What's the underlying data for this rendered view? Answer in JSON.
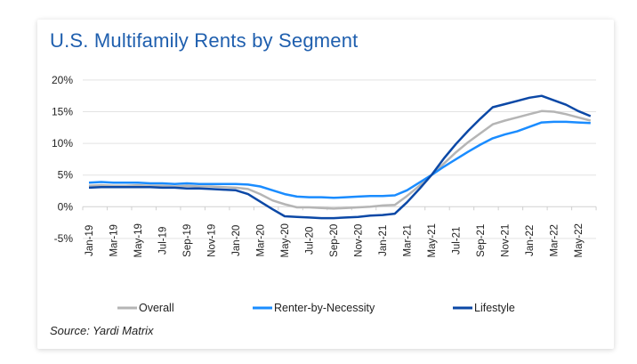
{
  "chart_data": {
    "type": "line",
    "title": "U.S. Multifamily Rents by Segment",
    "source": "Source: Yardi Matrix",
    "xlabel": "",
    "ylabel": "",
    "ylim": [
      -5,
      20
    ],
    "yticks": [
      -5,
      0,
      5,
      10,
      15,
      20
    ],
    "ytick_labels": [
      "-5%",
      "0%",
      "5%",
      "10%",
      "15%",
      "20%"
    ],
    "grid": true,
    "legend_position": "bottom",
    "x": [
      "Jan-19",
      "Feb-19",
      "Mar-19",
      "Apr-19",
      "May-19",
      "Jun-19",
      "Jul-19",
      "Aug-19",
      "Sep-19",
      "Oct-19",
      "Nov-19",
      "Dec-19",
      "Jan-20",
      "Feb-20",
      "Mar-20",
      "Apr-20",
      "May-20",
      "Jun-20",
      "Jul-20",
      "Aug-20",
      "Sep-20",
      "Oct-20",
      "Nov-20",
      "Dec-20",
      "Jan-21",
      "Feb-21",
      "Mar-21",
      "Apr-21",
      "May-21",
      "Jun-21",
      "Jul-21",
      "Aug-21",
      "Sep-21",
      "Oct-21",
      "Nov-21",
      "Dec-21",
      "Jan-22",
      "Feb-22",
      "Mar-22",
      "Apr-22",
      "May-22",
      "Jun-22"
    ],
    "xtick_labels": [
      "Jan-19",
      "Mar-19",
      "May-19",
      "Jul-19",
      "Sep-19",
      "Nov-19",
      "Jan-20",
      "Mar-20",
      "May-20",
      "Jul-20",
      "Sep-20",
      "Nov-20",
      "Jan-21",
      "Mar-21",
      "May-21",
      "Jul-21",
      "Sep-21",
      "Nov-21",
      "Jan-22",
      "Mar-22",
      "May-22"
    ],
    "series": [
      {
        "name": "Overall",
        "color": "#b5b5b5",
        "values": [
          3.3,
          3.4,
          3.3,
          3.3,
          3.4,
          3.3,
          3.3,
          3.2,
          3.3,
          3.2,
          3.2,
          3.1,
          3.0,
          2.8,
          2.0,
          1.0,
          0.4,
          -0.1,
          -0.1,
          -0.2,
          -0.3,
          -0.2,
          -0.1,
          0.0,
          0.2,
          0.3,
          1.7,
          3.3,
          5.0,
          6.8,
          8.6,
          10.2,
          11.6,
          13.0,
          13.6,
          14.1,
          14.6,
          15.1,
          15.0,
          14.6,
          14.1,
          13.6
        ]
      },
      {
        "name": "Renter-by-Necessity",
        "color": "#1a8cff",
        "values": [
          3.8,
          3.9,
          3.8,
          3.8,
          3.8,
          3.7,
          3.7,
          3.6,
          3.7,
          3.6,
          3.6,
          3.6,
          3.6,
          3.5,
          3.2,
          2.6,
          2.0,
          1.6,
          1.5,
          1.5,
          1.4,
          1.5,
          1.6,
          1.7,
          1.7,
          1.8,
          2.6,
          3.8,
          5.0,
          6.3,
          7.5,
          8.7,
          9.8,
          10.8,
          11.4,
          11.9,
          12.6,
          13.3,
          13.4,
          13.4,
          13.3,
          13.2
        ]
      },
      {
        "name": "Lifestyle",
        "color": "#0b48a6",
        "values": [
          3.0,
          3.1,
          3.1,
          3.1,
          3.1,
          3.1,
          3.0,
          3.0,
          2.9,
          2.9,
          2.8,
          2.7,
          2.6,
          2.0,
          0.8,
          -0.4,
          -1.5,
          -1.6,
          -1.7,
          -1.8,
          -1.8,
          -1.7,
          -1.6,
          -1.4,
          -1.3,
          -1.1,
          0.7,
          2.8,
          5.0,
          7.6,
          9.9,
          12.0,
          13.9,
          15.7,
          16.2,
          16.7,
          17.2,
          17.5,
          16.8,
          16.1,
          15.1,
          14.3
        ]
      }
    ]
  }
}
